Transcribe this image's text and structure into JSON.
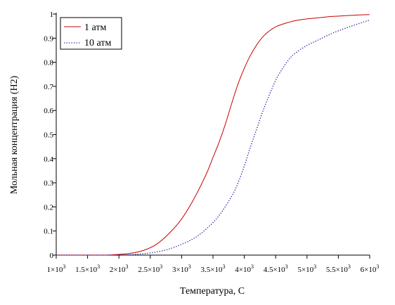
{
  "chart_data": {
    "type": "line",
    "xlabel": "Температура, С",
    "ylabel": "Мольная концентрация (Н2)",
    "xlim": [
      1000,
      6000
    ],
    "ylim": [
      0,
      1
    ],
    "grid": false,
    "legend_position": "top-left",
    "x_ticks": [
      1000,
      1500,
      2000,
      2500,
      3000,
      3500,
      4000,
      4500,
      5000,
      5500,
      6000
    ],
    "x_tick_labels": [
      {
        "mant": "1",
        "exp": "3"
      },
      {
        "mant": "1.5",
        "exp": "3"
      },
      {
        "mant": "2",
        "exp": "3"
      },
      {
        "mant": "2.5",
        "exp": "3"
      },
      {
        "mant": "3",
        "exp": "3"
      },
      {
        "mant": "3.5",
        "exp": "3"
      },
      {
        "mant": "4",
        "exp": "3"
      },
      {
        "mant": "4.5",
        "exp": "3"
      },
      {
        "mant": "5",
        "exp": "3"
      },
      {
        "mant": "5.5",
        "exp": "3"
      },
      {
        "mant": "6",
        "exp": "3"
      }
    ],
    "y_ticks": [
      0,
      0.1,
      0.2,
      0.3,
      0.4,
      0.5,
      0.6,
      0.7,
      0.8,
      0.9,
      1
    ],
    "y_tick_labels": [
      "0",
      "0.1",
      "0.2",
      "0.3",
      "0.4",
      "0.5",
      "0.6",
      "0.7",
      "0.8",
      "0.9",
      "1"
    ],
    "series": [
      {
        "name": "1 атм",
        "color": "#cc0000",
        "dash": "solid",
        "x": [
          1000,
          1500,
          1800,
          2000,
          2200,
          2400,
          2600,
          2800,
          3000,
          3200,
          3400,
          3500,
          3600,
          3700,
          3800,
          3900,
          4000,
          4100,
          4200,
          4300,
          4400,
          4500,
          4600,
          4700,
          4800,
          5000,
          5200,
          5400,
          5600,
          5800,
          6000
        ],
        "y": [
          0,
          0,
          0,
          0.003,
          0.008,
          0.02,
          0.045,
          0.09,
          0.15,
          0.235,
          0.34,
          0.405,
          0.47,
          0.545,
          0.63,
          0.71,
          0.775,
          0.83,
          0.873,
          0.907,
          0.93,
          0.947,
          0.957,
          0.965,
          0.972,
          0.98,
          0.985,
          0.99,
          0.993,
          0.996,
          0.998
        ]
      },
      {
        "name": "10 атм",
        "color": "#1a1aa8",
        "dash": "dotted",
        "x": [
          1000,
          1500,
          2000,
          2200,
          2400,
          2600,
          2800,
          3000,
          3200,
          3400,
          3600,
          3800,
          3900,
          4000,
          4100,
          4200,
          4300,
          4400,
          4500,
          4600,
          4700,
          4800,
          5000,
          5200,
          5400,
          5600,
          5800,
          6000
        ],
        "y": [
          0,
          0,
          0,
          0.002,
          0.006,
          0.013,
          0.025,
          0.045,
          0.07,
          0.11,
          0.165,
          0.245,
          0.3,
          0.37,
          0.45,
          0.525,
          0.6,
          0.665,
          0.725,
          0.77,
          0.808,
          0.835,
          0.87,
          0.895,
          0.92,
          0.94,
          0.958,
          0.975
        ]
      }
    ]
  }
}
